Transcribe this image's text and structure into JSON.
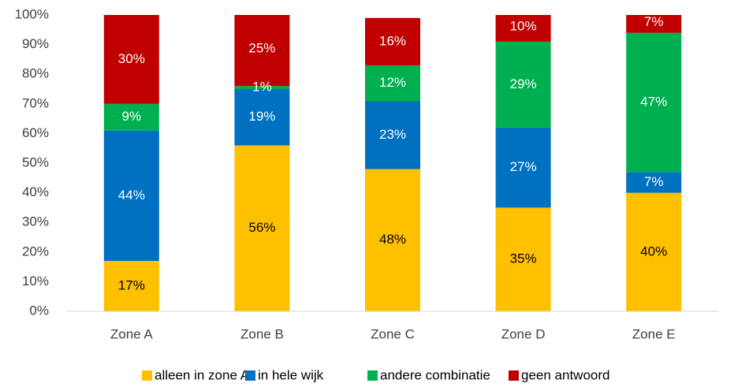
{
  "chart_data": {
    "type": "stacked_bar",
    "categories": [
      "Zone A",
      "Zone B",
      "Zone C",
      "Zone D",
      "Zone E"
    ],
    "series": [
      {
        "name": "alleen in zone A",
        "color": "#ffc000",
        "values": [
          17,
          56,
          48,
          35,
          40
        ],
        "value_labels": [
          "17%",
          "56%",
          "48%",
          "35%",
          "40%"
        ]
      },
      {
        "name": "in hele wijk",
        "color": "#0070c0",
        "values": [
          44,
          19,
          23,
          27,
          7
        ],
        "value_labels": [
          "44%",
          "19%",
          "23%",
          "27%",
          "7%"
        ]
      },
      {
        "name": "andere combinatie",
        "color": "#00b050",
        "values": [
          9,
          1,
          12,
          29,
          47
        ],
        "value_labels": [
          "9%",
          "1%",
          "12%",
          "29%",
          "47%"
        ]
      },
      {
        "name": "geen antwoord",
        "color": "#c00000",
        "values": [
          30,
          25,
          16,
          10,
          7
        ],
        "value_labels": [
          "30%",
          "25%",
          "16%",
          "10%",
          "7%"
        ]
      }
    ],
    "ylim": [
      0,
      100
    ],
    "yticks": [
      {
        "value": 0,
        "label": "0%"
      },
      {
        "value": 10,
        "label": "10%"
      },
      {
        "value": 20,
        "label": "20%"
      },
      {
        "value": 30,
        "label": "30%"
      },
      {
        "value": 40,
        "label": "40%"
      },
      {
        "value": 50,
        "label": "50%"
      },
      {
        "value": 60,
        "label": "60%"
      },
      {
        "value": 70,
        "label": "70%"
      },
      {
        "value": 80,
        "label": "80%"
      },
      {
        "value": 90,
        "label": "90%"
      },
      {
        "value": 100,
        "label": "100%"
      }
    ],
    "legend": "bottom"
  }
}
